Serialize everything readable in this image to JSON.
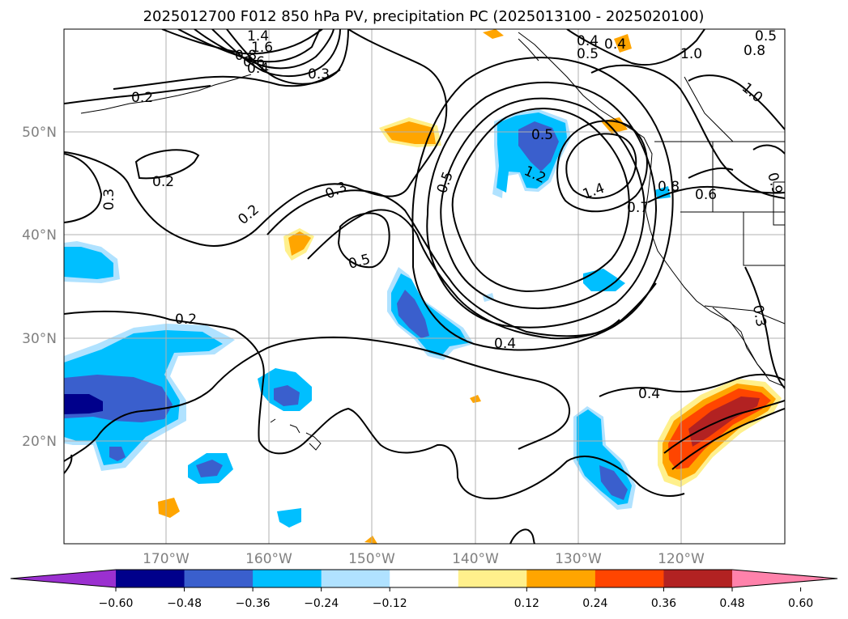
{
  "title": "2025012700 F012 850 hPa PV, precipitation PC (2025013100 - 2025020100)",
  "map": {
    "lon_labels": [
      "170°W",
      "160°W",
      "150°W",
      "140°W",
      "130°W",
      "120°W"
    ],
    "lat_labels": [
      "50°N",
      "40°N",
      "30°N",
      "20°N"
    ],
    "gridlines": true
  },
  "colorbar": {
    "ticks": [
      "−0.60",
      "−0.48",
      "−0.36",
      "−0.24",
      "−0.12",
      "0.12",
      "0.24",
      "0.36",
      "0.48",
      "0.60"
    ],
    "colors": [
      "#9b30d0",
      "#00008b",
      "#3a5fcd",
      "#00bfff",
      "#b0e2ff",
      "#ffffff",
      "#fff08c",
      "#ffa500",
      "#ff4500",
      "#b22222",
      "#ff82ab"
    ],
    "extend": "both"
  },
  "contour_labels": [
    "1.4",
    "1.6",
    "0.8",
    "0.6",
    "0.4",
    "0.3",
    "0.2",
    "0.2",
    "0.3",
    "0.2",
    "0.3",
    "0.5",
    "0.5",
    "0.5",
    "0.2",
    "0.4",
    "0.4",
    "0.5",
    "0.4",
    "0.5",
    "1.0",
    "0.8",
    "1.0",
    "0.9",
    "1.2",
    "1.4",
    "0.8",
    "0.7",
    "0.6",
    "0.3",
    "0.4"
  ]
}
